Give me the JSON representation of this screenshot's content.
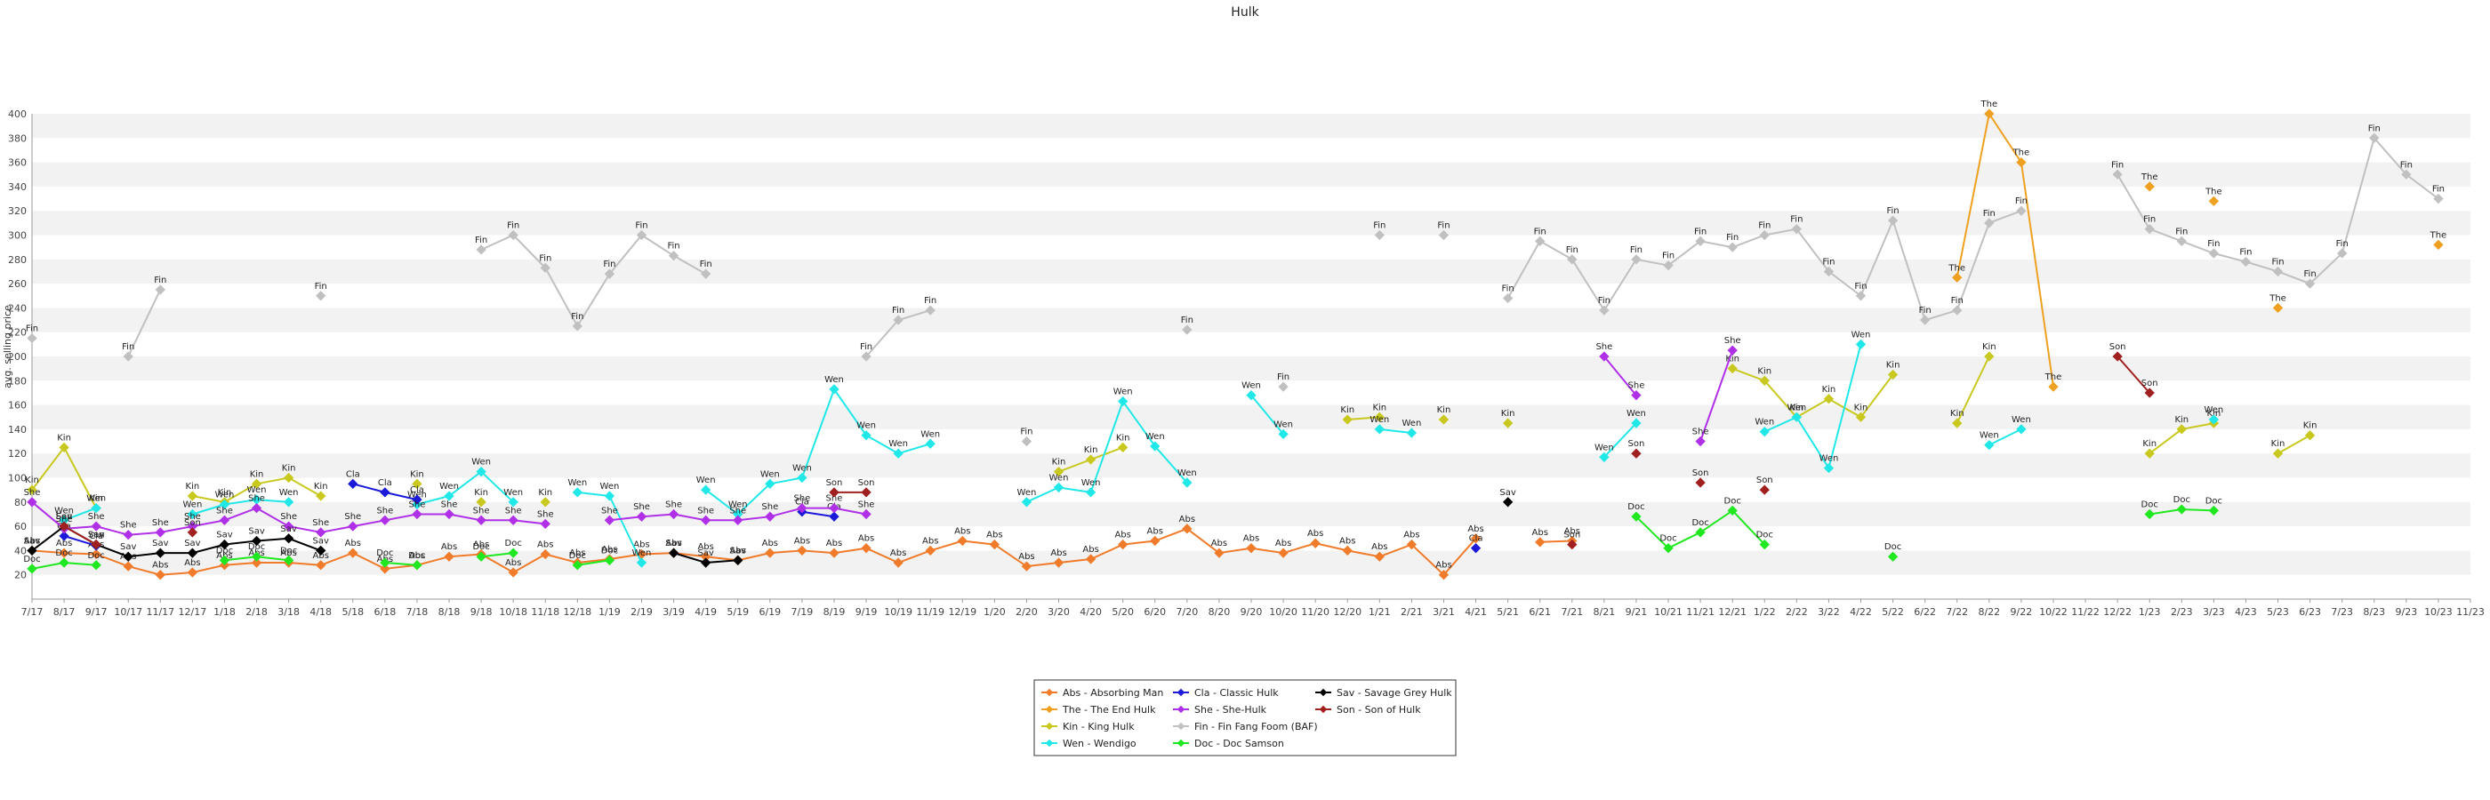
{
  "chart_data": {
    "type": "line",
    "title": "Hulk",
    "ylabel": "avg. selling price",
    "xlabel": "",
    "ylim": [
      0,
      400
    ],
    "yticks": [
      20,
      40,
      60,
      80,
      100,
      120,
      140,
      160,
      180,
      200,
      220,
      240,
      260,
      280,
      300,
      320,
      340,
      360,
      380,
      400
    ],
    "grid": "horizontal bands",
    "legend_position": "bottom-center",
    "categories": [
      "7/17",
      "8/17",
      "9/17",
      "10/17",
      "11/17",
      "12/17",
      "1/18",
      "2/18",
      "3/18",
      "4/18",
      "5/18",
      "6/18",
      "7/18",
      "8/18",
      "9/18",
      "10/18",
      "11/18",
      "12/18",
      "1/19",
      "2/19",
      "3/19",
      "4/19",
      "5/19",
      "6/19",
      "7/19",
      "8/19",
      "9/19",
      "10/19",
      "11/19",
      "12/19",
      "1/20",
      "2/20",
      "3/20",
      "4/20",
      "5/20",
      "6/20",
      "7/20",
      "8/20",
      "9/20",
      "10/20",
      "11/20",
      "12/20",
      "1/21",
      "2/21",
      "3/21",
      "4/21",
      "5/21",
      "6/21",
      "7/21",
      "8/21",
      "9/21",
      "10/21",
      "11/21",
      "12/21",
      "1/22",
      "2/22",
      "3/22",
      "4/22",
      "5/22",
      "6/22",
      "7/22",
      "8/22",
      "9/22",
      "10/22",
      "11/22",
      "12/22",
      "1/23",
      "2/23",
      "3/23",
      "4/23",
      "5/23",
      "6/23",
      "7/23",
      "8/23",
      "9/23",
      "10/23",
      "11/23"
    ],
    "series": [
      {
        "name": "Abs - Absorbing Man",
        "short": "Abs",
        "color": "#f07b2a",
        "values": [
          40,
          38,
          37,
          27,
          20,
          22,
          28,
          30,
          30,
          28,
          38,
          25,
          28,
          35,
          37,
          22,
          37,
          30,
          33,
          37,
          38,
          35,
          32,
          38,
          40,
          38,
          42,
          30,
          40,
          48,
          45,
          27,
          30,
          33,
          45,
          48,
          58,
          38,
          42,
          38,
          46,
          40,
          35,
          45,
          20,
          50,
          null,
          47,
          48,
          null,
          null,
          null,
          null,
          null,
          null,
          null,
          null,
          null,
          null,
          null,
          null,
          null,
          null,
          null,
          null,
          null,
          null,
          null,
          null,
          null,
          null,
          null,
          null,
          null,
          null,
          null,
          null
        ]
      },
      {
        "name": "The - The End Hulk",
        "short": "The",
        "color": "#f0a020",
        "values": [
          null,
          null,
          null,
          null,
          null,
          null,
          null,
          null,
          null,
          null,
          null,
          null,
          null,
          null,
          null,
          null,
          null,
          null,
          null,
          null,
          null,
          null,
          null,
          null,
          null,
          null,
          null,
          null,
          null,
          null,
          null,
          null,
          null,
          null,
          null,
          null,
          null,
          null,
          null,
          null,
          null,
          null,
          null,
          null,
          null,
          null,
          null,
          null,
          null,
          null,
          null,
          null,
          null,
          null,
          null,
          null,
          null,
          null,
          null,
          null,
          265,
          400,
          360,
          175,
          null,
          null,
          340,
          null,
          328,
          null,
          240,
          null,
          null,
          null,
          null,
          292,
          null
        ]
      },
      {
        "name": "Kin - King Hulk",
        "short": "Kin",
        "color": "#c8c81e",
        "values": [
          90,
          125,
          75,
          null,
          null,
          85,
          80,
          95,
          100,
          85,
          null,
          null,
          95,
          null,
          80,
          null,
          80,
          null,
          null,
          null,
          null,
          null,
          null,
          null,
          null,
          null,
          null,
          null,
          null,
          null,
          null,
          null,
          105,
          115,
          125,
          null,
          null,
          null,
          null,
          null,
          null,
          148,
          150,
          null,
          148,
          null,
          145,
          null,
          null,
          null,
          null,
          null,
          null,
          190,
          180,
          150,
          165,
          150,
          185,
          null,
          145,
          200,
          null,
          null,
          null,
          null,
          120,
          140,
          145,
          null,
          120,
          135,
          null,
          null,
          null,
          null,
          null
        ]
      },
      {
        "name": "Wen - Wendigo",
        "short": "Wen",
        "color": "#20e8e8",
        "values": [
          null,
          65,
          75,
          null,
          null,
          70,
          78,
          82,
          80,
          null,
          null,
          null,
          78,
          85,
          105,
          80,
          null,
          88,
          85,
          30,
          null,
          90,
          70,
          95,
          100,
          173,
          135,
          120,
          128,
          null,
          null,
          80,
          92,
          88,
          163,
          126,
          96,
          null,
          168,
          136,
          null,
          null,
          140,
          137,
          null,
          null,
          null,
          null,
          null,
          117,
          145,
          null,
          null,
          null,
          138,
          150,
          108,
          210,
          null,
          null,
          null,
          127,
          140,
          null,
          null,
          null,
          null,
          null,
          148,
          null,
          null,
          null,
          null,
          null,
          null,
          null,
          null
        ]
      },
      {
        "name": "Cla - Classic Hulk",
        "short": "Cla",
        "color": "#1a1ad8",
        "values": [
          null,
          52,
          44,
          null,
          null,
          null,
          null,
          null,
          null,
          null,
          95,
          88,
          82,
          null,
          null,
          null,
          null,
          null,
          null,
          null,
          null,
          null,
          null,
          null,
          72,
          68,
          null,
          null,
          null,
          null,
          null,
          null,
          null,
          null,
          null,
          null,
          null,
          null,
          null,
          null,
          null,
          null,
          null,
          null,
          null,
          42,
          null,
          null,
          null,
          null,
          null,
          null,
          null,
          null,
          null,
          null,
          null,
          null,
          null,
          null,
          null,
          null,
          null,
          null,
          null,
          null,
          null,
          null,
          null,
          null,
          null,
          null,
          null,
          null,
          null,
          null,
          null
        ]
      },
      {
        "name": "She - She-Hulk",
        "short": "She",
        "color": "#b030e8",
        "values": [
          80,
          58,
          60,
          53,
          55,
          60,
          65,
          75,
          60,
          55,
          60,
          65,
          70,
          70,
          65,
          65,
          62,
          null,
          65,
          68,
          70,
          65,
          65,
          68,
          75,
          75,
          70,
          null,
          null,
          null,
          null,
          null,
          null,
          null,
          null,
          null,
          null,
          null,
          null,
          null,
          null,
          null,
          null,
          null,
          null,
          null,
          null,
          null,
          null,
          200,
          168,
          null,
          130,
          205,
          null,
          null,
          null,
          null,
          null,
          null,
          null,
          null,
          null,
          null,
          null,
          null,
          null,
          null,
          null,
          null,
          null,
          null,
          null,
          null,
          null,
          null,
          null
        ]
      },
      {
        "name": "Fin - Fin Fang Foom (BAF)",
        "short": "Fin",
        "color": "#c0c0c0",
        "values": [
          215,
          null,
          null,
          200,
          255,
          null,
          null,
          null,
          null,
          250,
          null,
          null,
          null,
          null,
          288,
          300,
          273,
          225,
          268,
          300,
          283,
          268,
          null,
          null,
          null,
          null,
          200,
          230,
          238,
          null,
          null,
          130,
          null,
          null,
          null,
          null,
          222,
          null,
          null,
          175,
          null,
          null,
          300,
          null,
          300,
          null,
          248,
          295,
          280,
          238,
          280,
          275,
          295,
          290,
          300,
          305,
          270,
          250,
          312,
          230,
          238,
          310,
          320,
          null,
          null,
          350,
          305,
          295,
          285,
          278,
          270,
          260,
          285,
          380,
          350,
          330,
          null
        ]
      },
      {
        "name": "Doc - Doc Samson",
        "short": "Doc",
        "color": "#20e820",
        "values": [
          25,
          30,
          28,
          null,
          null,
          null,
          32,
          35,
          32,
          null,
          null,
          30,
          28,
          null,
          35,
          38,
          null,
          28,
          32,
          null,
          null,
          null,
          null,
          null,
          null,
          null,
          null,
          null,
          null,
          null,
          null,
          null,
          null,
          null,
          null,
          null,
          null,
          null,
          null,
          null,
          null,
          null,
          null,
          null,
          null,
          null,
          null,
          null,
          null,
          null,
          68,
          42,
          55,
          73,
          45,
          null,
          null,
          null,
          35,
          null,
          null,
          null,
          null,
          null,
          null,
          null,
          70,
          74,
          73,
          null,
          null,
          null,
          null,
          null,
          null,
          null,
          null
        ]
      },
      {
        "name": "Sav - Savage Grey Hulk",
        "short": "Sav",
        "color": "#000000",
        "values": [
          40,
          60,
          45,
          35,
          38,
          38,
          45,
          48,
          50,
          40,
          null,
          null,
          null,
          null,
          null,
          null,
          null,
          null,
          null,
          null,
          38,
          30,
          32,
          null,
          null,
          null,
          null,
          null,
          null,
          null,
          null,
          null,
          null,
          null,
          null,
          null,
          null,
          null,
          null,
          null,
          null,
          null,
          null,
          null,
          null,
          null,
          80,
          null,
          null,
          null,
          null,
          null,
          null,
          null,
          null,
          null,
          null,
          null,
          null,
          null,
          null,
          null,
          null,
          null,
          null,
          null,
          null,
          null,
          null,
          null,
          null,
          null,
          null,
          null,
          null,
          null,
          null
        ]
      },
      {
        "name": "Son - Son of Hulk",
        "short": "Son",
        "color": "#a02020",
        "values": [
          null,
          60,
          45,
          null,
          null,
          55,
          null,
          null,
          null,
          null,
          null,
          null,
          null,
          null,
          null,
          null,
          null,
          null,
          null,
          null,
          null,
          null,
          null,
          null,
          null,
          88,
          88,
          null,
          null,
          null,
          null,
          null,
          null,
          null,
          null,
          null,
          null,
          null,
          null,
          null,
          null,
          null,
          null,
          null,
          null,
          null,
          null,
          null,
          45,
          null,
          120,
          null,
          96,
          null,
          90,
          null,
          null,
          null,
          null,
          null,
          null,
          null,
          null,
          null,
          null,
          200,
          170,
          null,
          null,
          null,
          null,
          null,
          null,
          null,
          null,
          null,
          null
        ]
      }
    ]
  }
}
